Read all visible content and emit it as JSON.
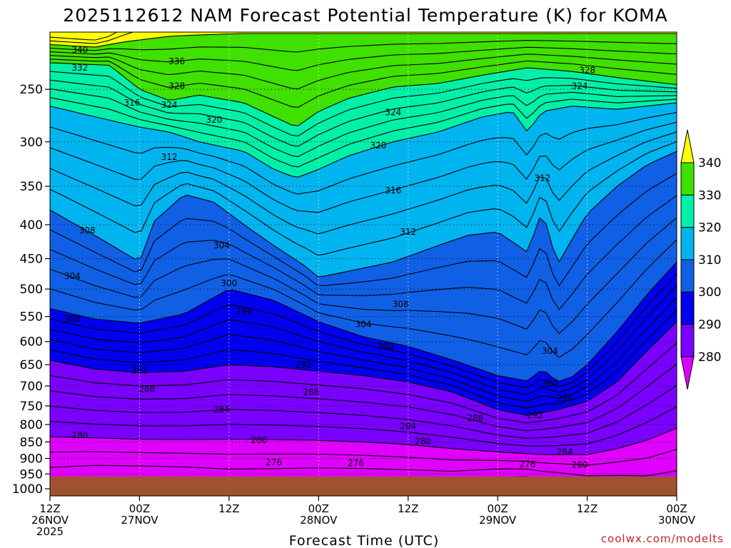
{
  "chart_data": {
    "type": "contour",
    "title": "2025112612 NAM Forecast Potential Temperature (K) for KOMA",
    "xlabel": "Forecast Time (UTC)",
    "ylabel": "",
    "units": "K",
    "credit": "coolwx.com/modelts",
    "y_axis": {
      "scale": "log-pressure",
      "range": [
        1025,
        205
      ],
      "ticks": [
        "250",
        "300",
        "350",
        "400",
        "450",
        "500",
        "550",
        "600",
        "650",
        "700",
        "750",
        "800",
        "850",
        "900",
        "950",
        "1000"
      ]
    },
    "x_axis": {
      "range_hours": [
        0,
        84
      ],
      "ticks": [
        {
          "hour": 0,
          "time": "12Z",
          "date": "26NOV",
          "year": "2025"
        },
        {
          "hour": 12,
          "time": "00Z",
          "date": "27NOV",
          "year": ""
        },
        {
          "hour": 24,
          "time": "12Z",
          "date": "",
          "year": ""
        },
        {
          "hour": 36,
          "time": "00Z",
          "date": "28NOV",
          "year": ""
        },
        {
          "hour": 48,
          "time": "12Z",
          "date": "",
          "year": ""
        },
        {
          "hour": 60,
          "time": "00Z",
          "date": "29NOV",
          "year": ""
        },
        {
          "hour": 72,
          "time": "12Z",
          "date": "",
          "year": ""
        },
        {
          "hour": 84,
          "time": "00Z",
          "date": "30NOV",
          "year": ""
        }
      ]
    },
    "colorbar": {
      "ticks": [
        "280",
        "290",
        "300",
        "310",
        "320",
        "330",
        "340"
      ],
      "bins": [
        {
          "min": null,
          "max": 280,
          "color": "#e000ff"
        },
        {
          "min": 280,
          "max": 290,
          "color": "#7a00ff"
        },
        {
          "min": 290,
          "max": 300,
          "color": "#0000f0"
        },
        {
          "min": 300,
          "max": 310,
          "color": "#1060e6"
        },
        {
          "min": 310,
          "max": 320,
          "color": "#00b4f0"
        },
        {
          "min": 320,
          "max": 330,
          "color": "#00f0a8"
        },
        {
          "min": 330,
          "max": 340,
          "color": "#40e000"
        },
        {
          "min": 340,
          "max": null,
          "color": "#ffff00"
        }
      ]
    },
    "contour_interval": 2,
    "contour_levels": {
      "min": 272,
      "max": 344
    },
    "ground_color": "#a0522d",
    "isentropes": [
      {
        "level": 280,
        "p": [
          [
            0,
            835
          ],
          [
            6,
            838
          ],
          [
            12,
            842
          ],
          [
            18,
            843
          ],
          [
            24,
            842
          ],
          [
            30,
            843
          ],
          [
            36,
            845
          ],
          [
            42,
            850
          ],
          [
            48,
            858
          ],
          [
            54,
            870
          ],
          [
            60,
            880
          ],
          [
            66,
            888
          ],
          [
            72,
            888
          ],
          [
            76,
            870
          ],
          [
            80,
            845
          ],
          [
            84,
            810
          ]
        ]
      },
      {
        "level": 290,
        "p": [
          [
            0,
            640
          ],
          [
            6,
            660
          ],
          [
            12,
            668
          ],
          [
            18,
            665
          ],
          [
            24,
            650
          ],
          [
            30,
            655
          ],
          [
            36,
            665
          ],
          [
            42,
            675
          ],
          [
            48,
            690
          ],
          [
            54,
            715
          ],
          [
            60,
            760
          ],
          [
            64,
            775
          ],
          [
            68,
            760
          ],
          [
            72,
            738
          ],
          [
            76,
            690
          ],
          [
            80,
            620
          ],
          [
            84,
            560
          ]
        ]
      },
      {
        "level": 300,
        "p": [
          [
            0,
            535
          ],
          [
            6,
            555
          ],
          [
            12,
            563
          ],
          [
            18,
            545
          ],
          [
            24,
            500
          ],
          [
            30,
            520
          ],
          [
            36,
            560
          ],
          [
            42,
            590
          ],
          [
            48,
            610
          ],
          [
            54,
            640
          ],
          [
            60,
            675
          ],
          [
            64,
            688
          ],
          [
            66,
            660
          ],
          [
            68,
            690
          ],
          [
            70,
            678
          ],
          [
            72,
            650
          ],
          [
            76,
            580
          ],
          [
            80,
            510
          ],
          [
            84,
            455
          ]
        ]
      },
      {
        "level": 310,
        "p": [
          [
            0,
            380
          ],
          [
            6,
            415
          ],
          [
            12,
            455
          ],
          [
            14,
            395
          ],
          [
            18,
            360
          ],
          [
            22,
            370
          ],
          [
            26,
            400
          ],
          [
            30,
            430
          ],
          [
            34,
            460
          ],
          [
            36,
            480
          ],
          [
            40,
            470
          ],
          [
            46,
            455
          ],
          [
            52,
            430
          ],
          [
            56,
            415
          ],
          [
            60,
            410
          ],
          [
            64,
            440
          ],
          [
            66,
            380
          ],
          [
            68,
            460
          ],
          [
            70,
            420
          ],
          [
            72,
            385
          ],
          [
            76,
            350
          ],
          [
            80,
            325
          ],
          [
            84,
            310
          ]
        ]
      },
      {
        "level": 320,
        "p": [
          [
            0,
            265
          ],
          [
            6,
            275
          ],
          [
            12,
            285
          ],
          [
            16,
            290
          ],
          [
            20,
            300
          ],
          [
            26,
            310
          ],
          [
            30,
            330
          ],
          [
            33,
            340
          ],
          [
            36,
            330
          ],
          [
            40,
            315
          ],
          [
            46,
            300
          ],
          [
            52,
            290
          ],
          [
            58,
            275
          ],
          [
            62,
            270
          ],
          [
            64,
            290
          ],
          [
            66,
            270
          ],
          [
            70,
            265
          ],
          [
            76,
            268
          ],
          [
            84,
            262
          ]
        ]
      },
      {
        "level": 330,
        "p": [
          [
            0,
            228
          ],
          [
            8,
            230
          ],
          [
            12,
            250
          ],
          [
            16,
            260
          ],
          [
            20,
            255
          ],
          [
            26,
            262
          ],
          [
            30,
            275
          ],
          [
            33,
            285
          ],
          [
            36,
            270
          ],
          [
            40,
            258
          ],
          [
            46,
            248
          ],
          [
            52,
            245
          ],
          [
            58,
            238
          ],
          [
            64,
            232
          ],
          [
            70,
            235
          ],
          [
            76,
            240
          ],
          [
            84,
            246
          ]
        ]
      },
      {
        "level": 340,
        "p": [
          [
            0,
            214
          ],
          [
            6,
            216
          ],
          [
            10,
            212
          ],
          [
            16,
            208
          ],
          [
            20,
            207
          ],
          [
            26,
            206
          ],
          [
            84,
            206
          ]
        ]
      }
    ],
    "contour_labels": [
      {
        "level": 340,
        "hour": 4,
        "p": 218
      },
      {
        "level": 332,
        "hour": 4,
        "p": 232
      },
      {
        "level": 336,
        "hour": 17,
        "p": 227
      },
      {
        "level": 316,
        "hour": 11,
        "p": 262
      },
      {
        "level": 328,
        "hour": 17,
        "p": 247
      },
      {
        "level": 324,
        "hour": 16,
        "p": 264
      },
      {
        "level": 320,
        "hour": 22,
        "p": 278
      },
      {
        "level": 324,
        "hour": 46,
        "p": 271
      },
      {
        "level": 320,
        "hour": 44,
        "p": 304
      },
      {
        "level": 328,
        "hour": 72,
        "p": 234
      },
      {
        "level": 324,
        "hour": 71,
        "p": 247
      },
      {
        "level": 312,
        "hour": 16,
        "p": 316
      },
      {
        "level": 312,
        "hour": 66,
        "p": 340
      },
      {
        "level": 316,
        "hour": 46,
        "p": 355
      },
      {
        "level": 308,
        "hour": 5,
        "p": 408
      },
      {
        "level": 312,
        "hour": 48,
        "p": 410
      },
      {
        "level": 304,
        "hour": 23,
        "p": 430
      },
      {
        "level": 304,
        "hour": 3,
        "p": 478
      },
      {
        "level": 300,
        "hour": 24,
        "p": 490
      },
      {
        "level": 308,
        "hour": 47,
        "p": 527
      },
      {
        "level": 296,
        "hour": 26,
        "p": 540
      },
      {
        "level": 300,
        "hour": 3,
        "p": 555
      },
      {
        "level": 304,
        "hour": 42,
        "p": 565
      },
      {
        "level": 300,
        "hour": 45,
        "p": 610
      },
      {
        "level": 304,
        "hour": 67,
        "p": 620
      },
      {
        "level": 292,
        "hour": 12,
        "p": 663
      },
      {
        "level": 292,
        "hour": 34,
        "p": 650
      },
      {
        "level": 300,
        "hour": 67,
        "p": 695
      },
      {
        "level": 288,
        "hour": 13,
        "p": 708
      },
      {
        "level": 288,
        "hour": 35,
        "p": 715
      },
      {
        "level": 296,
        "hour": 69,
        "p": 730
      },
      {
        "level": 284,
        "hour": 23,
        "p": 760
      },
      {
        "level": 292,
        "hour": 65,
        "p": 775
      },
      {
        "level": 288,
        "hour": 57,
        "p": 783
      },
      {
        "level": 284,
        "hour": 48,
        "p": 805
      },
      {
        "level": 280,
        "hour": 4,
        "p": 830
      },
      {
        "level": 280,
        "hour": 28,
        "p": 845
      },
      {
        "level": 280,
        "hour": 50,
        "p": 848
      },
      {
        "level": 284,
        "hour": 69,
        "p": 880
      },
      {
        "level": 276,
        "hour": 30,
        "p": 912
      },
      {
        "level": 276,
        "hour": 41,
        "p": 915
      },
      {
        "level": 276,
        "hour": 64,
        "p": 918
      },
      {
        "level": 280,
        "hour": 71,
        "p": 920
      }
    ]
  }
}
